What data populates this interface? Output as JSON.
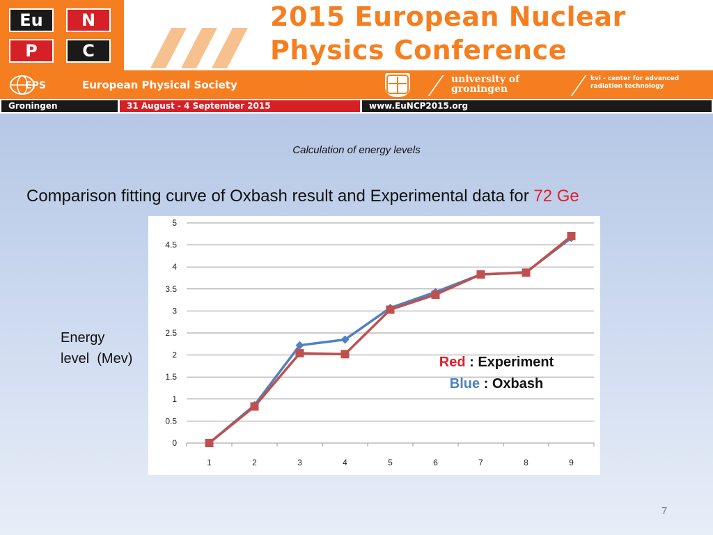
{
  "banner": {
    "tiles": [
      "Eu",
      "N",
      "P",
      "C"
    ],
    "title_line1": "2015 European Nuclear",
    "title_line2": "Physics Conference",
    "eps_logo": "EPS",
    "society": "European Physical Society",
    "university_line1": "university of",
    "university_line2": "groningen",
    "kvi_line1": "kvi - center for advanced",
    "kvi_line2": "radiation technology",
    "city": "Groningen",
    "dates": "31 August - 4 September 2015",
    "url": "www.EuNCP2015.org",
    "colors": {
      "orange": "#f57f20",
      "red": "#d62027",
      "dark": "#1a1a1a"
    }
  },
  "slide": {
    "subtitle": "Calculation of energy levels",
    "heading_prefix": "Comparison fitting curve of Oxbash result and Experimental data for",
    "heading_nucleus": "72 Ge",
    "ylabel_line1": "Energy",
    "ylabel_line2": "level  (Mev)",
    "legend": {
      "red_word": "Red",
      "red_rest": " : Experiment",
      "blue_word": "Blue",
      "blue_rest": " : Oxbash"
    },
    "page_number": "7"
  },
  "chart_data": {
    "type": "line",
    "x": [
      1,
      2,
      3,
      4,
      5,
      6,
      7,
      8,
      9
    ],
    "ylim": [
      0,
      5
    ],
    "yticks": [
      0,
      0.5,
      1,
      1.5,
      2,
      2.5,
      3,
      3.5,
      4,
      4.5,
      5
    ],
    "grid": true,
    "series": [
      {
        "name": "Oxbash",
        "color": "#4f81bd",
        "marker": "diamond",
        "values": [
          0,
          0.86,
          2.22,
          2.35,
          3.07,
          3.43,
          3.83,
          3.88,
          4.66
        ]
      },
      {
        "name": "Experiment",
        "color": "#c0504d",
        "marker": "square",
        "values": [
          0,
          0.83,
          2.04,
          2.02,
          3.03,
          3.37,
          3.83,
          3.87,
          4.7
        ]
      }
    ]
  }
}
